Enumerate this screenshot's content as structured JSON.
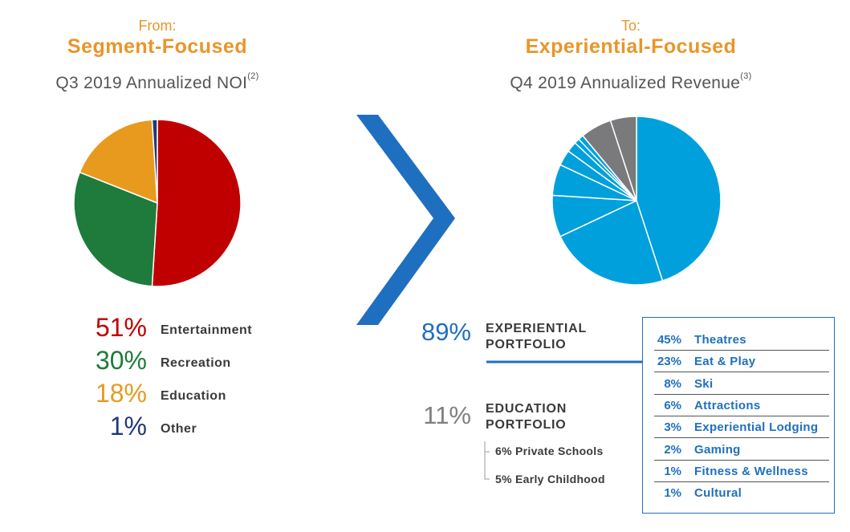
{
  "left": {
    "from_label": "From:",
    "heading": "Segment-Focused",
    "subtitle": "Q3 2019 Annualized NOI",
    "subtitle_sup": "(2)"
  },
  "right": {
    "to_label": "To:",
    "heading": "Experiential-Focused",
    "subtitle": "Q4 2019 Annualized Revenue",
    "subtitle_sup": "(3)"
  },
  "legend": [
    {
      "pct": "51%",
      "label": "Entertainment",
      "color": "#C00000"
    },
    {
      "pct": "30%",
      "label": "Recreation",
      "color": "#1E7B3B"
    },
    {
      "pct": "18%",
      "label": "Education",
      "color": "#E89A1E"
    },
    {
      "pct": "1%",
      "label": "Other",
      "color": "#1F3A7A"
    }
  ],
  "experiential": {
    "pct": "89%",
    "label_line1": "EXPERIENTIAL",
    "label_line2": "PORTFOLIO",
    "color": "#1f6fc0",
    "items": [
      {
        "pct": "45%",
        "name": "Theatres"
      },
      {
        "pct": "23%",
        "name": "Eat & Play"
      },
      {
        "pct": "8%",
        "name": "Ski"
      },
      {
        "pct": "6%",
        "name": "Attractions"
      },
      {
        "pct": "3%",
        "name": "Experiential Lodging"
      },
      {
        "pct": "2%",
        "name": "Gaming"
      },
      {
        "pct": "1%",
        "name": "Fitness & Wellness"
      },
      {
        "pct": "1%",
        "name": "Cultural"
      }
    ]
  },
  "education": {
    "pct": "11%",
    "label_line1": "EDUCATION",
    "label_line2": "PORTFOLIO",
    "color": "#7f7f7f",
    "items": [
      "6% Private Schools",
      "5% Early Childhood"
    ]
  },
  "chart_data": [
    {
      "type": "pie",
      "title": "Q3 2019 Annualized NOI",
      "categories": [
        "Entertainment",
        "Recreation",
        "Education",
        "Other"
      ],
      "values": [
        51,
        30,
        18,
        1
      ],
      "colors": [
        "#C00000",
        "#1E7B3B",
        "#E89A1E",
        "#1F3A7A"
      ],
      "start": "top, clockwise"
    },
    {
      "type": "pie",
      "title": "Q4 2019 Annualized Revenue",
      "categories": [
        "Theatres",
        "Eat & Play",
        "Ski",
        "Attractions",
        "Experiential Lodging",
        "Gaming",
        "Fitness & Wellness",
        "Cultural",
        "Private Schools",
        "Early Childhood"
      ],
      "values": [
        45,
        23,
        8,
        6,
        3,
        2,
        1,
        1,
        6,
        5
      ],
      "colors": [
        "#00A0DC",
        "#00A0DC",
        "#00A0DC",
        "#00A0DC",
        "#00A0DC",
        "#00A0DC",
        "#00A0DC",
        "#00A0DC",
        "#7A7A7D",
        "#7A7A7D"
      ],
      "start": "top, clockwise"
    }
  ]
}
